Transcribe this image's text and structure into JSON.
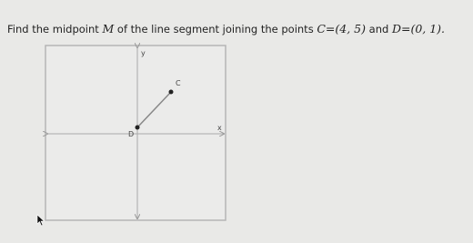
{
  "question": {
    "parts": [
      "Find the midpoint",
      "M",
      "of the line segment joining the points",
      "C=(4, 5)",
      "and",
      "D=(0, 1)."
    ]
  },
  "graph": {
    "axis_labels": {
      "x": "x",
      "y": "y"
    },
    "point_labels": [
      "C",
      "D"
    ]
  }
}
